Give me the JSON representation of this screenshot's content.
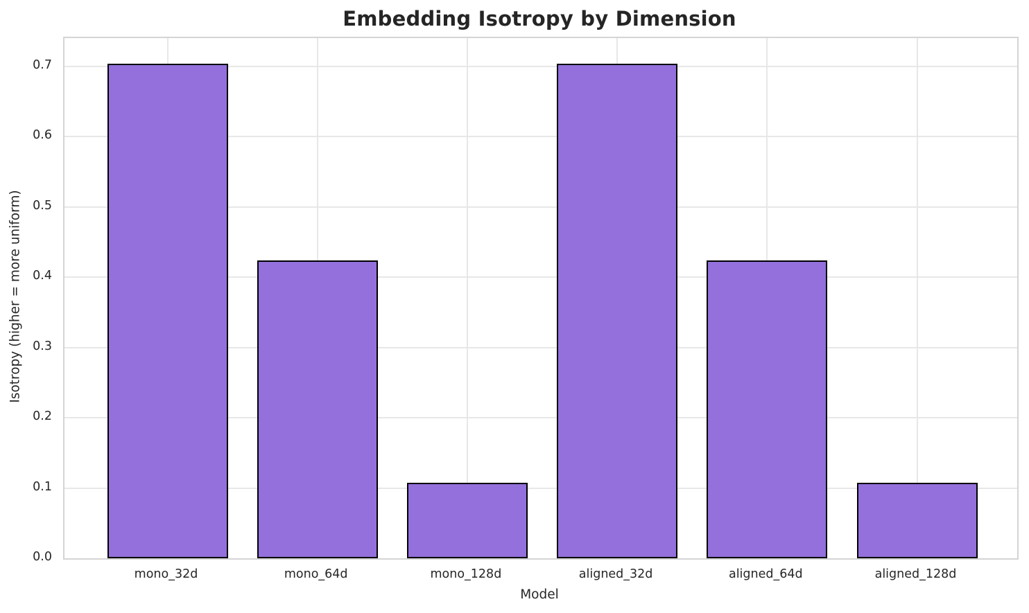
{
  "chart_data": {
    "type": "bar",
    "title": "Embedding Isotropy by Dimension",
    "xlabel": "Model",
    "ylabel": "Isotropy (higher = more uniform)",
    "categories": [
      "mono_32d",
      "mono_64d",
      "mono_128d",
      "aligned_32d",
      "aligned_64d",
      "aligned_128d"
    ],
    "values": [
      0.704,
      0.424,
      0.107,
      0.704,
      0.424,
      0.107
    ],
    "ylim": [
      0,
      0.74
    ],
    "yticks": [
      0.0,
      0.1,
      0.2,
      0.3,
      0.4,
      0.5,
      0.6,
      0.7
    ],
    "ytick_labels": [
      "0.0",
      "0.1",
      "0.2",
      "0.3",
      "0.4",
      "0.5",
      "0.6",
      "0.7"
    ],
    "grid": true,
    "legend_position": "none",
    "bar_color": "#9370DB",
    "bar_edge_color": "#000000",
    "grid_color": "#e7e7e7",
    "spine_color": "#d4d4d4",
    "text_color": "#262626"
  }
}
